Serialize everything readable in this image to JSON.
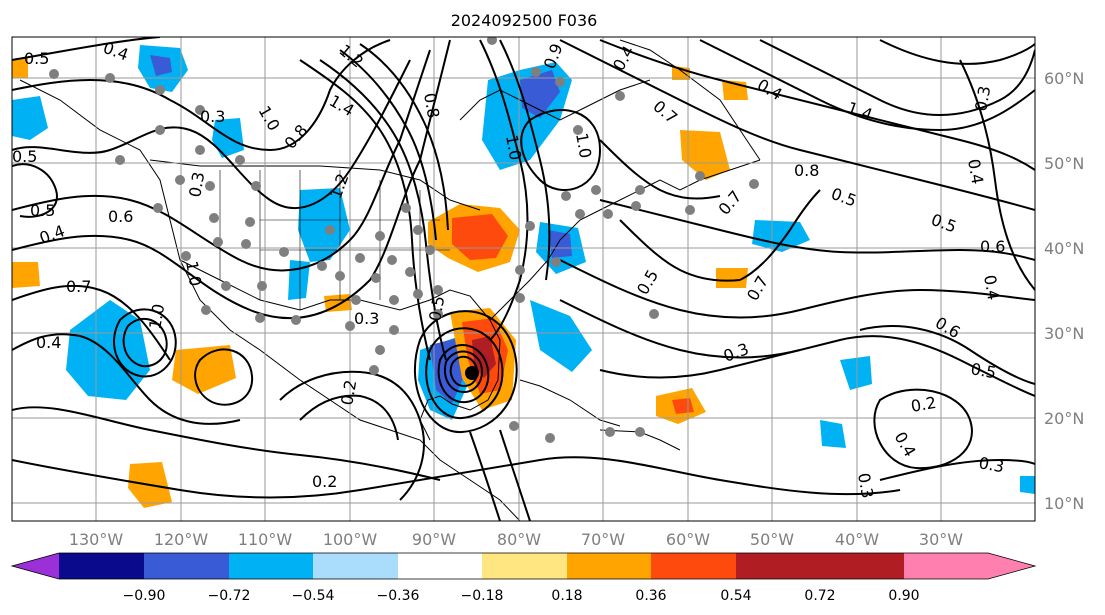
{
  "title": "2024092500 F036",
  "colors": {
    "purple": "#9b30d9",
    "navy": "#0a0a8c",
    "royal": "#3a5bd6",
    "sky": "#00b2f4",
    "pale_blue": "#a9ddfb",
    "pale_yellow": "#ffe680",
    "orange": "#ffa400",
    "orange_red": "#ff4a0e",
    "dark_red": "#b01e24",
    "pink": "#ff7fae",
    "contour": "#000000",
    "grid": "#9a9a9a",
    "tick_label": "#7f7f7f",
    "land_dot": "#7f7f7f"
  },
  "lon_labels": [
    "130°W",
    "120°W",
    "110°W",
    "100°W",
    "90°W",
    "80°W",
    "70°W",
    "60°W",
    "50°W",
    "40°W",
    "30°W"
  ],
  "lat_labels": [
    "10°N",
    "20°N",
    "30°N",
    "40°N",
    "50°N",
    "60°N"
  ],
  "colorbar": {
    "ticks": [
      "−0.90",
      "−0.72",
      "−0.54",
      "−0.36",
      "−0.18",
      "0.18",
      "0.36",
      "0.54",
      "0.72",
      "0.90"
    ],
    "bins": [
      {
        "name": "lt-n090",
        "color": "#9b30d9"
      },
      {
        "name": "n090-n072",
        "color": "#0a0a8c"
      },
      {
        "name": "n072-n054",
        "color": "#3a5bd6"
      },
      {
        "name": "n054-n036",
        "color": "#00b2f4"
      },
      {
        "name": "n036-n018",
        "color": "#a9ddfb"
      },
      {
        "name": "n018-p018",
        "color": "#ffffff"
      },
      {
        "name": "p018-p036",
        "color": "#ffe680"
      },
      {
        "name": "p036-p054",
        "color": "#ffa400"
      },
      {
        "name": "p054-p072",
        "color": "#ff4a0e"
      },
      {
        "name": "p072-p090",
        "color": "#b01e24"
      },
      {
        "name": "gt-p090",
        "color": "#ff7fae"
      }
    ]
  },
  "contour_labels": [
    "0.5",
    "0.4",
    "0.6",
    "0.7",
    "0.4",
    "0.5",
    "0.5",
    "0.2",
    "0.3",
    "0.2",
    "0.3",
    "1.0",
    "1.2",
    "1.4",
    "0.8",
    "1.2",
    "1.0",
    "1.0",
    "0.8",
    "1.0",
    "0.9",
    "0.5",
    "0.4",
    "0.7",
    "0.8",
    "1.4",
    "1.0",
    "0.3",
    "0.4",
    "0.4",
    "0.5",
    "0.6",
    "0.5",
    "0.4",
    "0.6",
    "0.7",
    "0.5",
    "0.7",
    "0.3",
    "0.5",
    "0.2",
    "0.3",
    "0.4",
    "0.3",
    "0.3",
    "0.4"
  ]
}
